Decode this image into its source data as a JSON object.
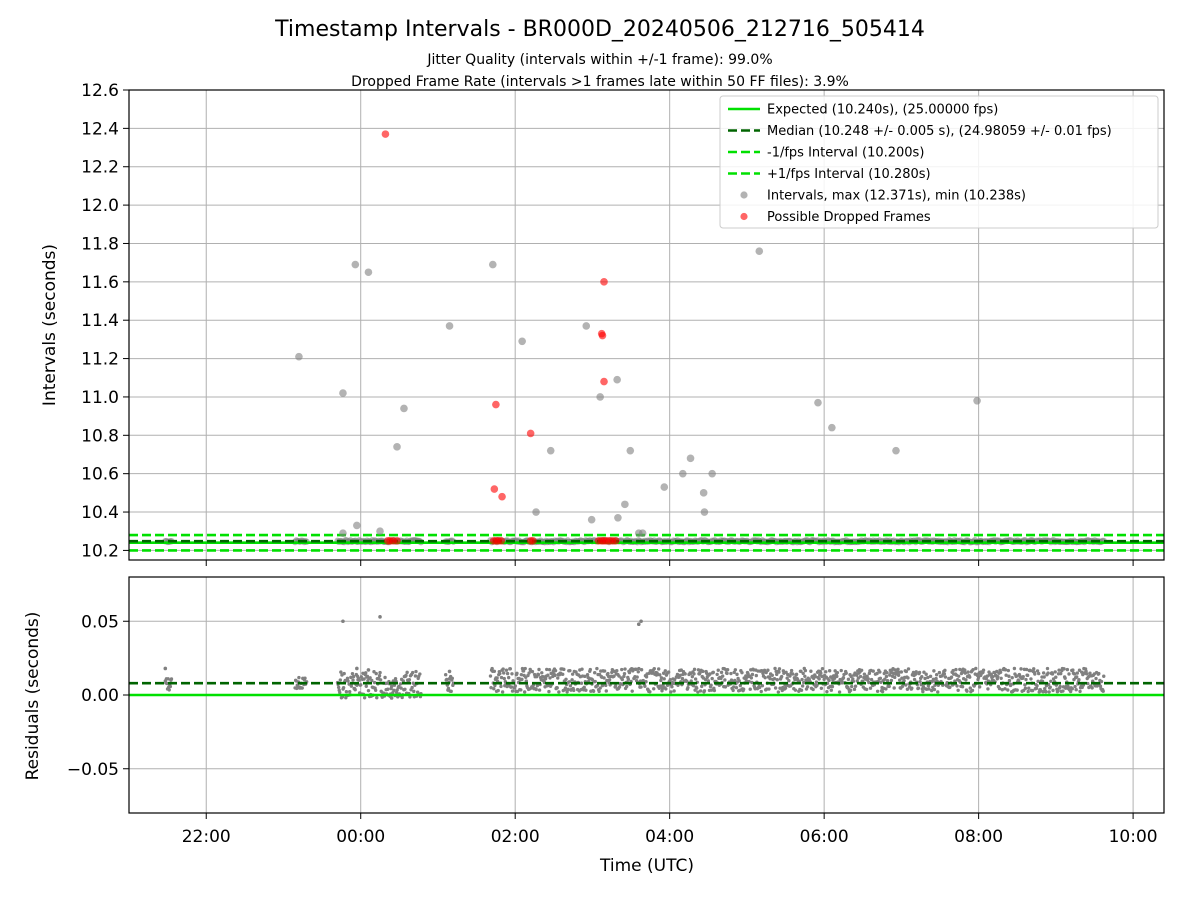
{
  "chart_data": [
    {
      "type": "scatter",
      "title": "Timestamp Intervals - BR000D_20240506_212716_505414",
      "subtitle_1": "Jitter Quality (intervals within +/-1 frame): 99.0%",
      "subtitle_2": "Dropped Frame Rate (intervals >1 frames late within 50 FF files): 3.9%",
      "xlabel": "",
      "ylabel": "Intervals (seconds)",
      "x_unit": "hours (UTC, relative to 00:00 of 2024-05-07)",
      "xlim": [
        -3.0,
        10.4
      ],
      "ylim": [
        10.15,
        12.6
      ],
      "yticks": [
        10.2,
        10.4,
        10.6,
        10.8,
        11.0,
        11.2,
        11.4,
        11.6,
        11.8,
        12.0,
        12.2,
        12.4,
        12.6
      ],
      "ytick_labels": [
        "10.2",
        "10.4",
        "10.6",
        "10.8",
        "11.0",
        "11.2",
        "11.4",
        "11.6",
        "11.8",
        "12.0",
        "12.2",
        "12.4",
        "12.6"
      ],
      "grid": true,
      "legend_position": "upper right",
      "lines": [
        {
          "name": "Expected (10.240s), (25.00000 fps)",
          "y": 10.24,
          "color": "#00e000",
          "style": "solid"
        },
        {
          "name": "Median (10.248 +/- 0.005 s), (24.98059 +/- 0.01 fps)",
          "y": 10.248,
          "color": "#006400",
          "style": "dashed"
        },
        {
          "name": "-1/fps Interval (10.200s)",
          "y": 10.2,
          "color": "#00e000",
          "style": "dashed"
        },
        {
          "name": "+1/fps Interval (10.280s)",
          "y": 10.28,
          "color": "#00e000",
          "style": "dashed"
        }
      ],
      "series": [
        {
          "name": "Intervals, max (12.371s), min (10.238s)",
          "color": "#808080",
          "points": [
            [
              -0.8,
              11.21
            ],
            [
              -0.23,
              11.02
            ],
            [
              -0.07,
              11.69
            ],
            [
              0.1,
              11.65
            ],
            [
              -0.23,
              10.29
            ],
            [
              -0.05,
              10.33
            ],
            [
              0.25,
              10.3
            ],
            [
              0.47,
              10.74
            ],
            [
              0.56,
              10.94
            ],
            [
              1.15,
              11.37
            ],
            [
              1.71,
              11.69
            ],
            [
              2.09,
              11.29
            ],
            [
              2.27,
              10.4
            ],
            [
              2.46,
              10.72
            ],
            [
              2.92,
              11.37
            ],
            [
              2.99,
              10.36
            ],
            [
              3.1,
              11.0
            ],
            [
              3.32,
              11.09
            ],
            [
              3.33,
              10.37
            ],
            [
              3.42,
              10.44
            ],
            [
              3.49,
              10.72
            ],
            [
              3.6,
              10.29
            ],
            [
              3.65,
              10.29
            ],
            [
              3.93,
              10.53
            ],
            [
              4.17,
              10.6
            ],
            [
              4.27,
              10.68
            ],
            [
              4.44,
              10.5
            ],
            [
              4.45,
              10.4
            ],
            [
              4.55,
              10.6
            ],
            [
              5.16,
              11.76
            ],
            [
              5.92,
              10.97
            ],
            [
              6.1,
              10.84
            ],
            [
              6.93,
              10.72
            ],
            [
              7.98,
              10.98
            ]
          ]
        },
        {
          "name": "Possible Dropped Frames",
          "color": "#ff0000",
          "points": [
            [
              0.32,
              12.37
            ],
            [
              3.15,
              11.6
            ],
            [
              3.12,
              11.33
            ],
            [
              3.13,
              11.32
            ],
            [
              3.15,
              11.08
            ],
            [
              1.75,
              10.96
            ],
            [
              2.2,
              10.81
            ],
            [
              1.73,
              10.52
            ],
            [
              1.83,
              10.48
            ],
            [
              0.35,
              10.25
            ],
            [
              0.38,
              10.25
            ],
            [
              0.42,
              10.25
            ],
            [
              0.47,
              10.25
            ],
            [
              1.72,
              10.25
            ],
            [
              1.75,
              10.25
            ],
            [
              1.78,
              10.25
            ],
            [
              1.82,
              10.25
            ],
            [
              2.2,
              10.25
            ],
            [
              2.23,
              10.25
            ],
            [
              3.08,
              10.25
            ],
            [
              3.12,
              10.25
            ],
            [
              3.15,
              10.25
            ],
            [
              3.18,
              10.25
            ],
            [
              3.22,
              10.25
            ],
            [
              3.26,
              10.25
            ],
            [
              3.3,
              10.25
            ]
          ]
        }
      ]
    },
    {
      "type": "scatter",
      "title": "",
      "xlabel": "Time (UTC)",
      "ylabel": "Residuals (seconds)",
      "xlim": [
        -3.0,
        10.4
      ],
      "ylim": [
        -0.08,
        0.08
      ],
      "xticks": [
        -2,
        0,
        2,
        4,
        6,
        8,
        10
      ],
      "xtick_labels": [
        "22:00",
        "00:00",
        "02:00",
        "04:00",
        "06:00",
        "08:00",
        "10:00"
      ],
      "yticks": [
        -0.05,
        0.0,
        0.05
      ],
      "ytick_labels": [
        "−0.05",
        "0.00",
        "0.05"
      ],
      "grid": true,
      "lines": [
        {
          "name": "expected-residual",
          "y": 0.0,
          "color": "#00e000",
          "style": "solid"
        },
        {
          "name": "median-residual",
          "y": 0.008,
          "color": "#006400",
          "style": "dashed"
        }
      ],
      "series": [
        {
          "name": "residuals",
          "color": "#808080",
          "segments": [
            {
              "x_start": -2.53,
              "x_end": -2.45,
              "y_min": 0.003,
              "y_max": 0.012
            },
            {
              "x_start": -0.85,
              "x_end": -0.7,
              "y_min": 0.004,
              "y_max": 0.012
            },
            {
              "x_start": -0.3,
              "x_end": 0.78,
              "y_min": -0.002,
              "y_max": 0.016
            },
            {
              "x_start": 1.1,
              "x_end": 1.2,
              "y_min": 0.002,
              "y_max": 0.014
            },
            {
              "x_start": 1.68,
              "x_end": 9.62,
              "y_min": 0.002,
              "y_max": 0.018
            }
          ],
          "outliers": [
            [
              -2.53,
              0.018
            ],
            [
              -0.23,
              0.05
            ],
            [
              0.25,
              0.053
            ],
            [
              3.6,
              0.048
            ],
            [
              3.63,
              0.05
            ],
            [
              -0.05,
              0.018
            ],
            [
              0.1,
              0.017
            ],
            [
              0.4,
              -0.002
            ],
            [
              1.15,
              0.016
            ]
          ]
        }
      ]
    }
  ]
}
